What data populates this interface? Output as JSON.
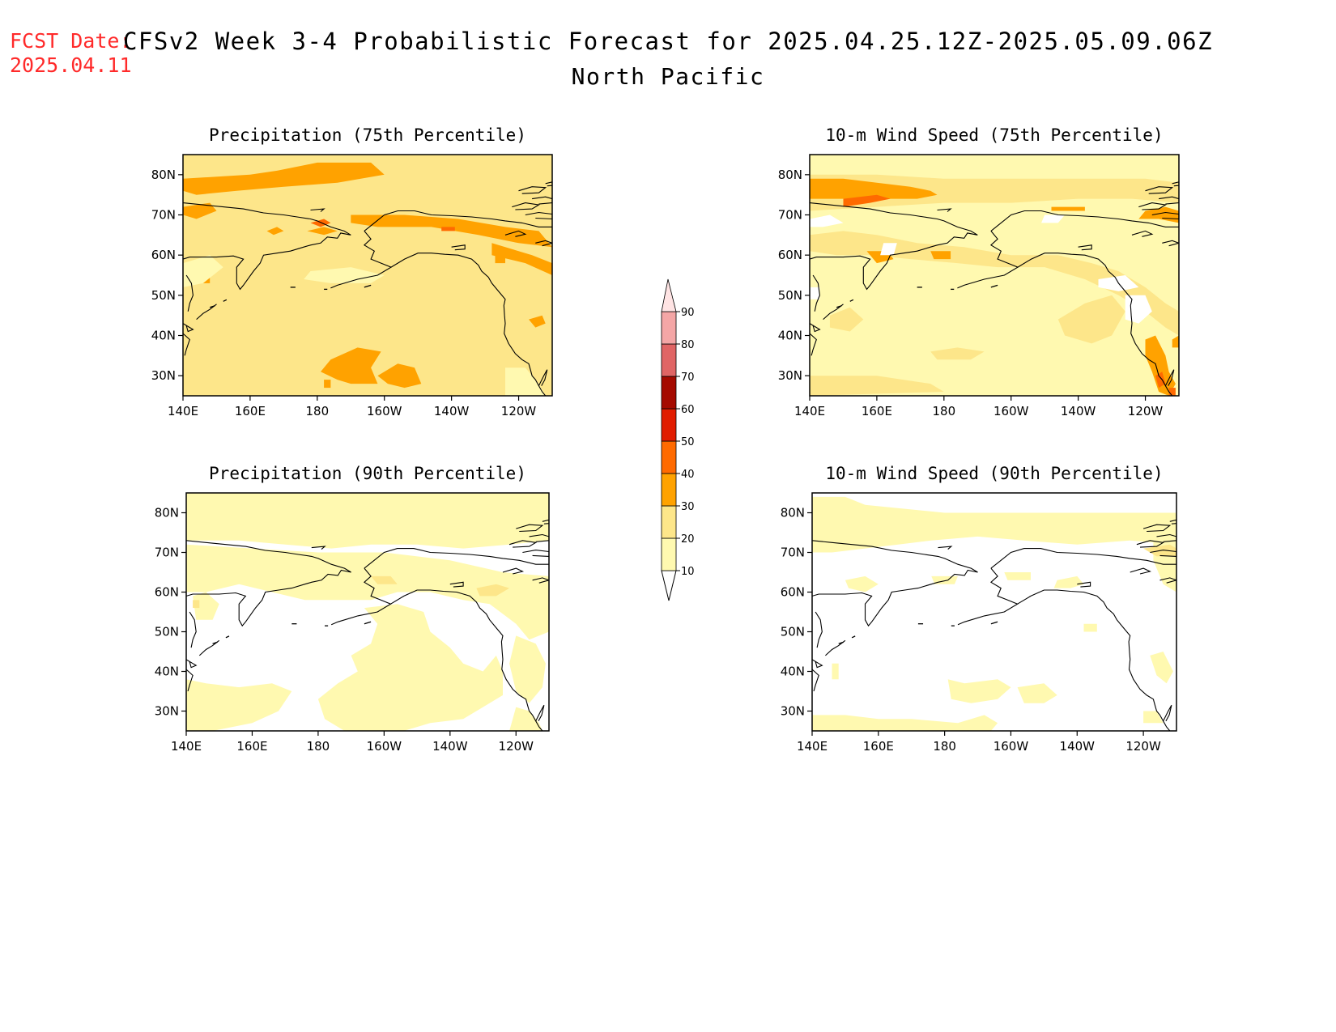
{
  "header": {
    "fcst_label": "FCST Date:",
    "fcst_date": "2025.04.11",
    "title": "CFSv2 Week 3-4 Probabilistic Forecast for 2025.04.25.12Z-2025.05.09.06Z",
    "region": "North Pacific"
  },
  "axes": {
    "lon_labels": [
      "140E",
      "160E",
      "180",
      "160W",
      "140W",
      "120W"
    ],
    "lon_values": [
      140,
      160,
      180,
      200,
      220,
      240
    ],
    "lat_labels": [
      "80N",
      "70N",
      "60N",
      "50N",
      "40N",
      "30N"
    ],
    "lat_values": [
      80,
      70,
      60,
      50,
      40,
      30
    ],
    "lon_range": [
      140,
      250
    ],
    "lat_range": [
      25,
      85
    ]
  },
  "panels": [
    {
      "title": "Precipitation (75th Percentile)",
      "base_level": 20,
      "patches": "p75"
    },
    {
      "title": "10-m Wind Speed (75th Percentile)",
      "base_level": 10,
      "patches": "w75"
    },
    {
      "title": "Precipitation (90th Percentile)",
      "base_level": 0,
      "patches": "p90"
    },
    {
      "title": "10-m Wind Speed (90th Percentile)",
      "base_level": 0,
      "patches": "w90"
    }
  ],
  "colorbar": {
    "levels": [
      "10",
      "20",
      "30",
      "40",
      "50",
      "60",
      "70",
      "80",
      "90"
    ],
    "colors": [
      "#fff9b0",
      "#fde68a",
      "#ffa200",
      "#ff6a00",
      "#e11c00",
      "#a50a00",
      "#e06565",
      "#f4a6a6",
      "#ffe4e4"
    ]
  },
  "colors": {
    "ramp": {
      "10": "#fff9b0",
      "20": "#fde68a",
      "30": "#ffa200",
      "40": "#ff6a00",
      "50": "#e11c00"
    },
    "fcst_text": "#ff2a2a"
  }
}
